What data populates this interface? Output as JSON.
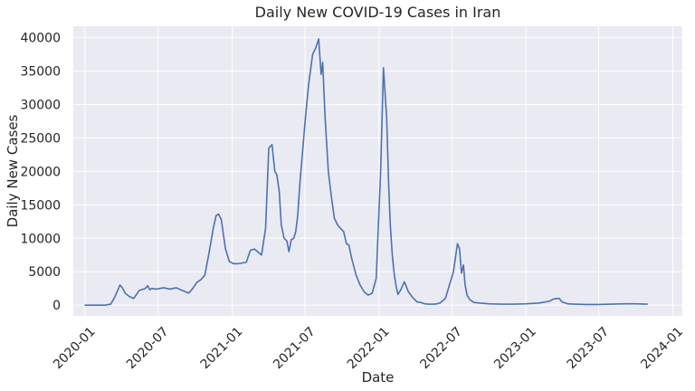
{
  "chart_data": {
    "type": "line",
    "title": "Daily New COVID-19 Cases in Iran",
    "xlabel": "Date",
    "ylabel": "Daily New Cases",
    "xlim": [
      "2019-12-03",
      "2024-01-25"
    ],
    "ylim": [
      -1600,
      41700
    ],
    "grid": true,
    "x_ticks": [
      "2020-01",
      "2020-07",
      "2021-01",
      "2021-07",
      "2022-01",
      "2022-07",
      "2023-01",
      "2023-07",
      "2024-01"
    ],
    "y_ticks": [
      0,
      5000,
      10000,
      15000,
      20000,
      25000,
      30000,
      35000,
      40000
    ],
    "background_color": "#EAEAF2",
    "line_color": "#4C72B0",
    "series": [
      {
        "x": [
          "2019-12-31",
          "2020-01-25",
          "2020-02-19",
          "2020-03-05",
          "2020-03-15",
          "2020-03-28",
          "2020-04-03",
          "2020-04-10",
          "2020-04-20",
          "2020-05-01",
          "2020-05-15",
          "2020-05-30",
          "2020-06-05",
          "2020-06-10",
          "2020-06-15",
          "2020-06-25",
          "2020-07-15",
          "2020-07-30",
          "2020-08-15",
          "2020-08-30",
          "2020-09-15",
          "2020-09-25",
          "2020-10-05",
          "2020-10-15",
          "2020-10-25",
          "2020-11-05",
          "2020-11-15",
          "2020-11-22",
          "2020-11-28",
          "2020-12-05",
          "2020-12-15",
          "2020-12-25",
          "2021-01-05",
          "2021-01-15",
          "2021-01-25",
          "2021-02-05",
          "2021-02-15",
          "2021-02-25",
          "2021-03-05",
          "2021-03-15",
          "2021-03-25",
          "2021-04-02",
          "2021-04-10",
          "2021-04-17",
          "2021-04-22",
          "2021-04-28",
          "2021-05-03",
          "2021-05-10",
          "2021-05-17",
          "2021-05-22",
          "2021-05-28",
          "2021-06-03",
          "2021-06-08",
          "2021-06-13",
          "2021-06-18",
          "2021-06-25",
          "2021-07-02",
          "2021-07-10",
          "2021-07-20",
          "2021-07-28",
          "2021-08-04",
          "2021-08-10",
          "2021-08-14",
          "2021-08-17",
          "2021-08-20",
          "2021-08-24",
          "2021-08-28",
          "2021-09-05",
          "2021-09-12",
          "2021-09-20",
          "2021-09-27",
          "2021-10-05",
          "2021-10-12",
          "2021-10-18",
          "2021-10-25",
          "2021-11-05",
          "2021-11-15",
          "2021-11-25",
          "2021-12-05",
          "2021-12-15",
          "2021-12-25",
          "2022-01-05",
          "2022-01-12",
          "2022-01-20",
          "2022-01-25",
          "2022-01-29",
          "2022-02-03",
          "2022-02-07",
          "2022-02-12",
          "2022-02-17",
          "2022-02-24",
          "2022-03-05",
          "2022-03-15",
          "2022-03-25",
          "2022-04-05",
          "2022-04-15",
          "2022-04-25",
          "2022-05-05",
          "2022-05-20",
          "2022-06-01",
          "2022-06-15",
          "2022-06-25",
          "2022-07-05",
          "2022-07-15",
          "2022-07-20",
          "2022-07-25",
          "2022-07-30",
          "2022-08-03",
          "2022-08-08",
          "2022-08-15",
          "2022-08-25",
          "2022-09-10",
          "2022-10-01",
          "2022-11-01",
          "2022-12-01",
          "2023-01-01",
          "2023-02-01",
          "2023-03-01",
          "2023-03-10",
          "2023-03-18",
          "2023-03-25",
          "2023-04-01",
          "2023-04-15",
          "2023-05-01",
          "2023-06-01",
          "2023-07-01",
          "2023-08-01",
          "2023-09-01",
          "2023-10-01",
          "2023-10-31"
        ],
        "y": [
          0,
          0,
          0,
          150,
          1200,
          3000,
          2600,
          1800,
          1300,
          1000,
          2200,
          2500,
          2900,
          2300,
          2500,
          2400,
          2600,
          2400,
          2600,
          2200,
          1800,
          2500,
          3400,
          3800,
          4500,
          8000,
          11500,
          13400,
          13600,
          12800,
          8500,
          6500,
          6200,
          6200,
          6300,
          6400,
          8200,
          8400,
          8000,
          7500,
          11500,
          23500,
          24000,
          20000,
          19500,
          17000,
          12000,
          10000,
          9600,
          8000,
          9800,
          10000,
          11000,
          13500,
          18000,
          23000,
          28000,
          33000,
          37500,
          38500,
          39800,
          34500,
          36300,
          32000,
          28000,
          24000,
          20000,
          16000,
          13000,
          12000,
          11500,
          11000,
          9200,
          9000,
          7000,
          4500,
          3000,
          2000,
          1500,
          1800,
          4000,
          20000,
          35500,
          28000,
          18000,
          12000,
          7500,
          5000,
          3000,
          1600,
          2300,
          3500,
          2000,
          1200,
          500,
          400,
          200,
          150,
          150,
          300,
          1000,
          3000,
          5000,
          9200,
          8500,
          4800,
          6000,
          3000,
          1500,
          800,
          400,
          300,
          200,
          150,
          150,
          200,
          300,
          600,
          900,
          1000,
          1000,
          500,
          200,
          150,
          100,
          100,
          150,
          200,
          200,
          150
        ]
      }
    ]
  }
}
